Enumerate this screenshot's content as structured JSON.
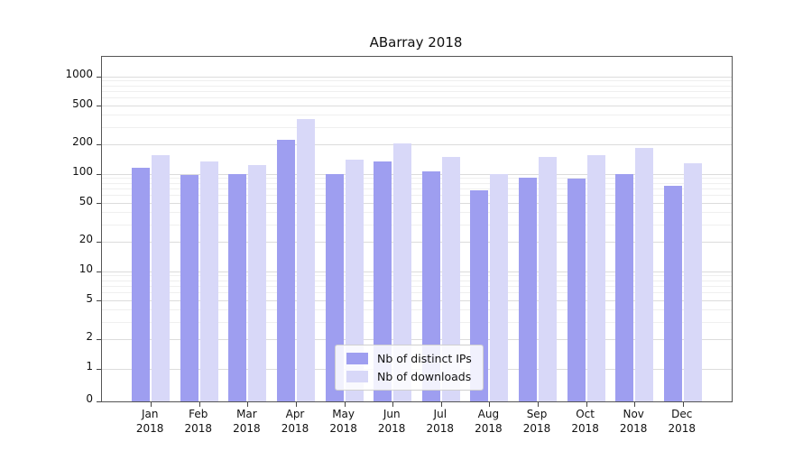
{
  "chart_data": {
    "type": "bar",
    "title": "ABarray 2018",
    "scale": "symlog",
    "grid": "horizontal",
    "categories": [
      "Jan",
      "Feb",
      "Mar",
      "Apr",
      "May",
      "Jun",
      "Jul",
      "Aug",
      "Sep",
      "Oct",
      "Nov",
      "Dec"
    ],
    "year": "2018",
    "series": [
      {
        "name": "Nb of distinct IPs",
        "color": "#9e9ef0",
        "values": [
          115,
          98,
          101,
          225,
          100,
          135,
          107,
          68,
          92,
          90,
          100,
          76
        ]
      },
      {
        "name": "Nb of downloads",
        "color": "#d8d8f8",
        "values": [
          155,
          134,
          124,
          370,
          140,
          205,
          150,
          100,
          150,
          157,
          185,
          130
        ]
      }
    ],
    "yticks": [
      0,
      1,
      2,
      5,
      10,
      20,
      50,
      100,
      200,
      500,
      1000
    ],
    "ylim": [
      0,
      1400
    ],
    "legend_position": "lower center",
    "colors": {
      "major_grid": "#dcdcdc",
      "minor_grid": "#efefef",
      "axis": "#555555",
      "text": "#111111"
    }
  }
}
